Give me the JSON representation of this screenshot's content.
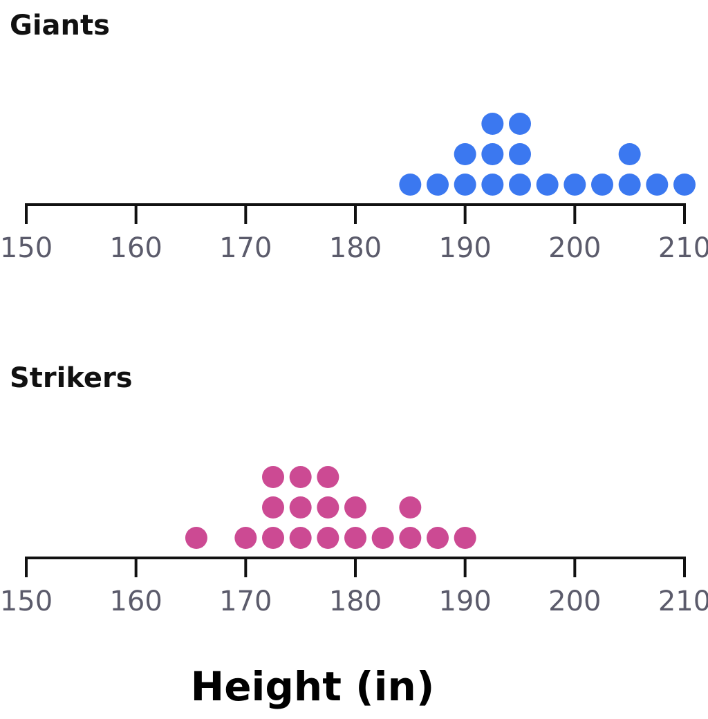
{
  "chart_data": [
    {
      "type": "dot",
      "title": "Giants",
      "xlim": [
        150,
        210
      ],
      "ticks": [
        150,
        160,
        170,
        180,
        190,
        200,
        210
      ],
      "color": "#3b78f0",
      "points": [
        {
          "x": 185,
          "count": 1
        },
        {
          "x": 187.5,
          "count": 1
        },
        {
          "x": 190,
          "count": 2
        },
        {
          "x": 192.5,
          "count": 3
        },
        {
          "x": 195,
          "count": 3
        },
        {
          "x": 197.5,
          "count": 1
        },
        {
          "x": 200,
          "count": 1
        },
        {
          "x": 202.5,
          "count": 1
        },
        {
          "x": 205,
          "count": 2
        },
        {
          "x": 207.5,
          "count": 1
        },
        {
          "x": 210,
          "count": 1
        }
      ]
    },
    {
      "type": "dot",
      "title": "Strikers",
      "xlim": [
        150,
        210
      ],
      "ticks": [
        150,
        160,
        170,
        180,
        190,
        200,
        210
      ],
      "color": "#cc4a93",
      "points": [
        {
          "x": 165.5,
          "count": 1
        },
        {
          "x": 170,
          "count": 1
        },
        {
          "x": 172.5,
          "count": 3
        },
        {
          "x": 175,
          "count": 3
        },
        {
          "x": 177.5,
          "count": 3
        },
        {
          "x": 180,
          "count": 2
        },
        {
          "x": 182.5,
          "count": 1
        },
        {
          "x": 185,
          "count": 2
        },
        {
          "x": 187.5,
          "count": 1
        },
        {
          "x": 190,
          "count": 1
        }
      ]
    }
  ],
  "xlabel": "Height (in)"
}
